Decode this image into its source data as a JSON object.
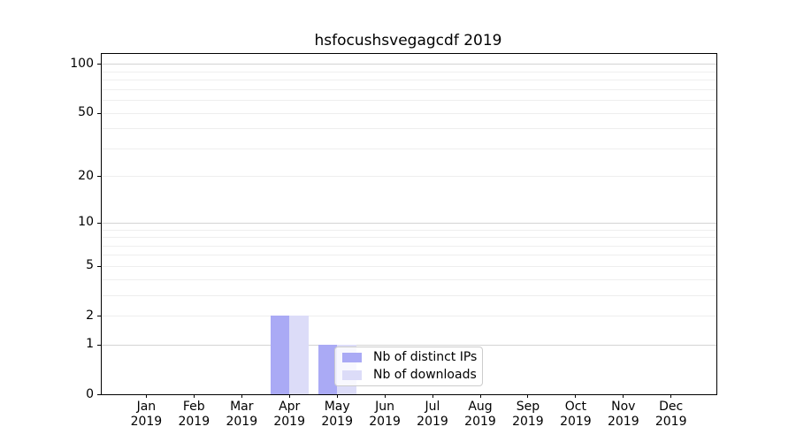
{
  "chart_data": {
    "type": "bar",
    "title": "hsfocushsvegagcdf 2019",
    "categories": [
      "Jan",
      "Feb",
      "Mar",
      "Apr",
      "May",
      "Jun",
      "Jul",
      "Aug",
      "Sep",
      "Oct",
      "Nov",
      "Dec"
    ],
    "year_label": "2019",
    "series": [
      {
        "name": "Nb of distinct IPs",
        "color": "#aaaaf5",
        "values": [
          0,
          0,
          0,
          2,
          1,
          0,
          0,
          0,
          0,
          0,
          0,
          0
        ]
      },
      {
        "name": "Nb of downloads",
        "color": "#dcdcf8",
        "values": [
          0,
          0,
          0,
          2,
          1,
          0,
          0,
          0,
          0,
          0,
          0,
          0
        ]
      }
    ],
    "y_scale": "log1p",
    "y_ticks": [
      0,
      1,
      2,
      5,
      10,
      20,
      50,
      100
    ],
    "ylim": [
      0,
      115
    ],
    "xlabel": "",
    "ylabel": "",
    "grid": {
      "axis": "y",
      "major_levels": [
        1,
        10,
        100
      ],
      "minor_levels": [
        2,
        3,
        4,
        5,
        6,
        7,
        8,
        9,
        20,
        30,
        40,
        50,
        60,
        70,
        80,
        90
      ],
      "major_color": "#d4d4d4",
      "minor_color": "#eeeeee"
    },
    "legend": {
      "location": "lower center",
      "background": "#ffffff",
      "border_color": "#cccccc"
    }
  },
  "colors": {
    "axes": "#000000",
    "text": "#000000",
    "background": "#ffffff"
  }
}
